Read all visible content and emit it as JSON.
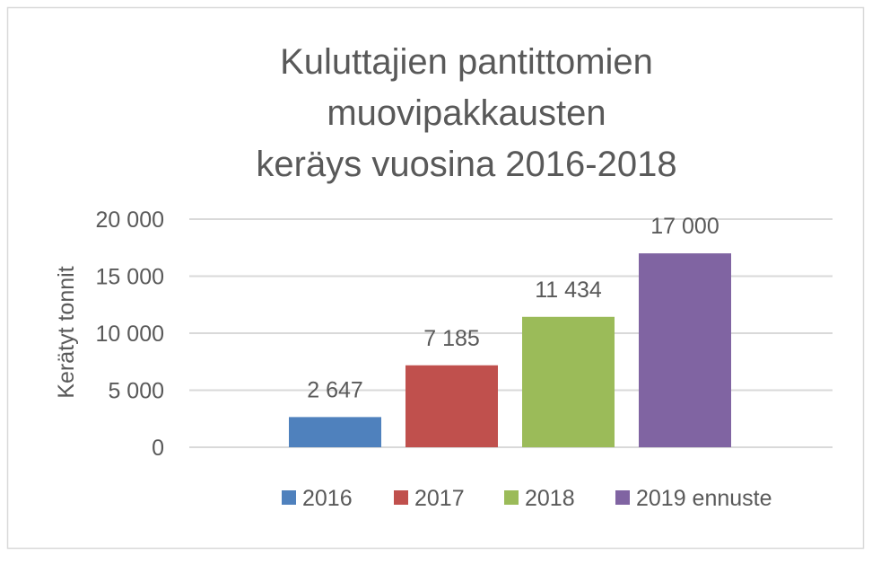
{
  "chart_data": {
    "type": "bar",
    "title": [
      "Kuluttajien pantittomien",
      "muovipakkausten",
      "keräys vuosina 2016-2018"
    ],
    "ylabel": "Kerätyt tonnit",
    "xlabel": "",
    "ylim": [
      0,
      20000
    ],
    "yticks": [
      0,
      5000,
      10000,
      15000,
      20000
    ],
    "ytick_labels": [
      "0",
      "5 000",
      "10 000",
      "15 000",
      "20 000"
    ],
    "grid": true,
    "legend_position": "bottom",
    "series": [
      {
        "name": "2016",
        "value": 2647,
        "label": "2 647",
        "color": "#4F81BD"
      },
      {
        "name": "2017",
        "value": 7185,
        "label": "7 185",
        "color": "#C0504D"
      },
      {
        "name": "2018",
        "value": 11434,
        "label": "11 434",
        "color": "#9BBB59"
      },
      {
        "name": "2019 ennuste",
        "value": 17000,
        "label": "17 000",
        "color": "#8064A2"
      }
    ]
  }
}
